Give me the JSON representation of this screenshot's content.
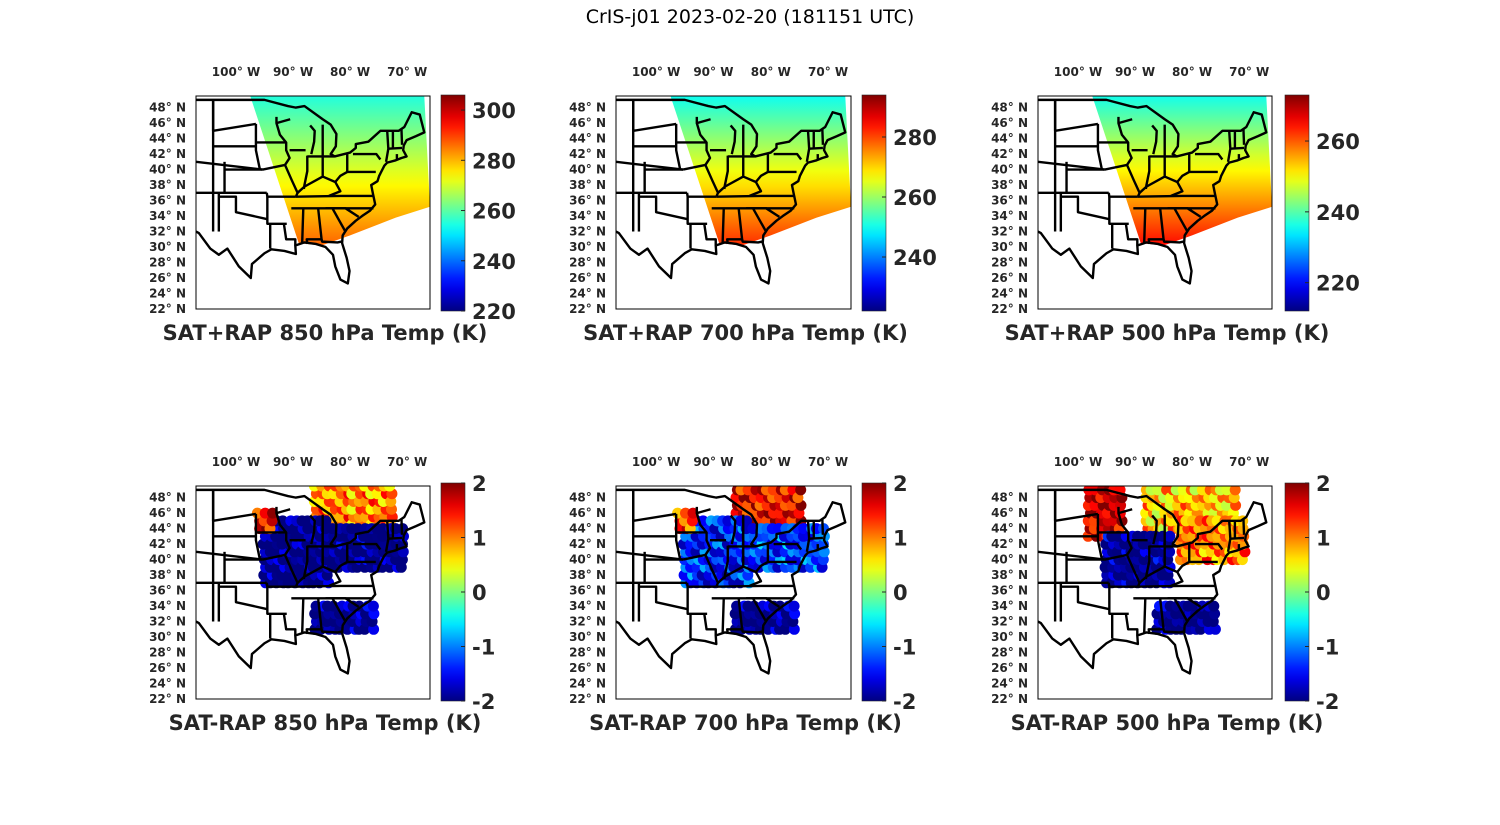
{
  "figure": {
    "suptitle": "CrIS-j01 2023-02-20 (181151 UTC)"
  },
  "chart_data": [
    {
      "type": "heatmap",
      "panel": "top-left",
      "title": "SAT+RAP 850 hPa Temp (K)",
      "variable": "temperature",
      "units": "K",
      "xlabel": "",
      "ylabel": "",
      "xlim": [
        -107,
        -66
      ],
      "ylim": [
        22,
        49.5
      ],
      "x_ticks": [
        "100° W",
        "90° W",
        "80° W",
        "70° W"
      ],
      "x_tick_values": [
        -100,
        -90,
        -80,
        -70
      ],
      "y_ticks": [
        "48° N",
        "46° N",
        "44° N",
        "42° N",
        "40° N",
        "38° N",
        "36° N",
        "34° N",
        "32° N",
        "30° N",
        "28° N",
        "26° N",
        "24° N",
        "22° N"
      ],
      "y_tick_values": [
        48,
        46,
        44,
        42,
        40,
        38,
        36,
        34,
        32,
        30,
        28,
        26,
        24,
        22
      ],
      "colorbar": {
        "colormap": "jet",
        "range": [
          220,
          306
        ],
        "ticks": [
          220,
          240,
          260,
          280,
          300
        ],
        "tick_labels": [
          "220",
          "240",
          "260",
          "280",
          "300"
        ]
      },
      "field": {
        "north_value": 255,
        "south_value": 287,
        "lat_top": 49.5,
        "lat_bottom": 30.5
      },
      "swath": "satellite",
      "grid": false
    },
    {
      "type": "heatmap",
      "panel": "top-middle",
      "title": "SAT+RAP 700 hPa Temp (K)",
      "variable": "temperature",
      "units": "K",
      "xlim": [
        -107,
        -66
      ],
      "ylim": [
        22,
        49.5
      ],
      "x_ticks": [
        "100° W",
        "90° W",
        "80° W",
        "70° W"
      ],
      "x_tick_values": [
        -100,
        -90,
        -80,
        -70
      ],
      "y_ticks": [
        "48° N",
        "46° N",
        "44° N",
        "42° N",
        "40° N",
        "38° N",
        "36° N",
        "34° N",
        "32° N",
        "30° N",
        "28° N",
        "26° N",
        "24° N",
        "22° N"
      ],
      "y_tick_values": [
        48,
        46,
        44,
        42,
        40,
        38,
        36,
        34,
        32,
        30,
        28,
        26,
        24,
        22
      ],
      "colorbar": {
        "colormap": "jet",
        "range": [
          222,
          294
        ],
        "ticks": [
          240,
          260,
          280
        ],
        "tick_labels": [
          "240",
          "260",
          "280"
        ]
      },
      "field": {
        "north_value": 250,
        "south_value": 282,
        "lat_top": 49.5,
        "lat_bottom": 30.5
      },
      "grid": false
    },
    {
      "type": "heatmap",
      "panel": "top-right",
      "title": "SAT+RAP 500 hPa Temp (K)",
      "variable": "temperature",
      "units": "K",
      "xlim": [
        -107,
        -66
      ],
      "ylim": [
        22,
        49.5
      ],
      "x_ticks": [
        "100° W",
        "90° W",
        "80° W",
        "70° W"
      ],
      "x_tick_values": [
        -100,
        -90,
        -80,
        -70
      ],
      "y_ticks": [
        "48° N",
        "46° N",
        "44° N",
        "42° N",
        "40° N",
        "38° N",
        "36° N",
        "34° N",
        "32° N",
        "30° N",
        "28° N",
        "26° N",
        "24° N",
        "22° N"
      ],
      "y_tick_values": [
        48,
        46,
        44,
        42,
        40,
        38,
        36,
        34,
        32,
        30,
        28,
        26,
        24,
        22
      ],
      "colorbar": {
        "colormap": "jet",
        "range": [
          212,
          273
        ],
        "ticks": [
          220,
          240,
          260
        ],
        "tick_labels": [
          "220",
          "240",
          "260"
        ]
      },
      "field": {
        "north_value": 236,
        "south_value": 265,
        "lat_top": 49.5,
        "lat_bottom": 30.5
      },
      "grid": false
    },
    {
      "type": "scatter",
      "panel": "bottom-left",
      "title": "SAT-RAP 850 hPa Temp (K)",
      "variable": "temperature difference",
      "units": "K",
      "xlim": [
        -107,
        -66
      ],
      "ylim": [
        22,
        49.5
      ],
      "x_ticks": [
        "100° W",
        "90° W",
        "80° W",
        "70° W"
      ],
      "x_tick_values": [
        -100,
        -90,
        -80,
        -70
      ],
      "y_ticks": [
        "48° N",
        "46° N",
        "44° N",
        "42° N",
        "40° N",
        "38° N",
        "36° N",
        "34° N",
        "32° N",
        "30° N",
        "28° N",
        "26° N",
        "24° N",
        "22° N"
      ],
      "y_tick_values": [
        48,
        46,
        44,
        42,
        40,
        38,
        36,
        34,
        32,
        30,
        28,
        26,
        24,
        22
      ],
      "colorbar": {
        "colormap": "jet",
        "range": [
          -2,
          2
        ],
        "ticks": [
          -2,
          -1,
          0,
          1,
          2
        ],
        "tick_labels": [
          "-2",
          "-1",
          "0",
          "1",
          "2"
        ]
      },
      "regions": [
        {
          "lon": [
            -86,
            -72
          ],
          "lat": [
            44.5,
            49.5
          ],
          "value": 1.0
        },
        {
          "lon": [
            -95,
            -84
          ],
          "lat": [
            37,
            45
          ],
          "value": -2
        },
        {
          "lon": [
            -84,
            -70
          ],
          "lat": [
            39,
            44
          ],
          "value": -2
        },
        {
          "lon": [
            -86,
            -76
          ],
          "lat": [
            31,
            34
          ],
          "value": -2
        },
        {
          "lon": [
            -96,
            -93
          ],
          "lat": [
            44,
            46
          ],
          "value": 1.5
        }
      ],
      "grid": false
    },
    {
      "type": "scatter",
      "panel": "bottom-middle",
      "title": "SAT-RAP 700 hPa Temp (K)",
      "variable": "temperature difference",
      "units": "K",
      "xlim": [
        -107,
        -66
      ],
      "ylim": [
        22,
        49.5
      ],
      "x_ticks": [
        "100° W",
        "90° W",
        "80° W",
        "70° W"
      ],
      "x_tick_values": [
        -100,
        -90,
        -80,
        -70
      ],
      "y_ticks": [
        "48° N",
        "46° N",
        "44° N",
        "42° N",
        "40° N",
        "38° N",
        "36° N",
        "34° N",
        "32° N",
        "30° N",
        "28° N",
        "26° N",
        "24° N",
        "22° N"
      ],
      "y_tick_values": [
        48,
        46,
        44,
        42,
        40,
        38,
        36,
        34,
        32,
        30,
        28,
        26,
        24,
        22
      ],
      "colorbar": {
        "colormap": "jet",
        "range": [
          -2,
          2
        ],
        "ticks": [
          -2,
          -1,
          0,
          1,
          2
        ],
        "tick_labels": [
          "-2",
          "-1",
          "0",
          "1",
          "2"
        ]
      },
      "regions": [
        {
          "lon": [
            -86,
            -74
          ],
          "lat": [
            44,
            49.5
          ],
          "value": 1.6
        },
        {
          "lon": [
            -95,
            -84
          ],
          "lat": [
            37,
            45
          ],
          "value": -1.3
        },
        {
          "lon": [
            -84,
            -70
          ],
          "lat": [
            39,
            44
          ],
          "value": -1.2
        },
        {
          "lon": [
            -86,
            -76
          ],
          "lat": [
            31,
            34
          ],
          "value": -2
        },
        {
          "lon": [
            -96,
            -93
          ],
          "lat": [
            44,
            46
          ],
          "value": 1.2
        }
      ],
      "grid": false
    },
    {
      "type": "scatter",
      "panel": "bottom-right",
      "title": "SAT-RAP 500 hPa Temp (K)",
      "variable": "temperature difference",
      "units": "K",
      "xlim": [
        -107,
        -66
      ],
      "ylim": [
        22,
        49.5
      ],
      "x_ticks": [
        "100° W",
        "90° W",
        "80° W",
        "70° W"
      ],
      "x_tick_values": [
        -100,
        -90,
        -80,
        -70
      ],
      "y_ticks": [
        "48° N",
        "46° N",
        "44° N",
        "42° N",
        "40° N",
        "38° N",
        "36° N",
        "34° N",
        "32° N",
        "30° N",
        "28° N",
        "26° N",
        "24° N",
        "22° N"
      ],
      "y_tick_values": [
        48,
        46,
        44,
        42,
        40,
        38,
        36,
        34,
        32,
        30,
        28,
        26,
        24,
        22
      ],
      "colorbar": {
        "colormap": "jet",
        "range": [
          -2,
          2
        ],
        "ticks": [
          -2,
          -1,
          0,
          1,
          2
        ],
        "tick_labels": [
          "-2",
          "-1",
          "0",
          "1",
          "2"
        ]
      },
      "regions": [
        {
          "lon": [
            -98,
            -92
          ],
          "lat": [
            43,
            49.5
          ],
          "value": 1.7
        },
        {
          "lon": [
            -88,
            -72
          ],
          "lat": [
            44,
            49.5
          ],
          "value": 0.8
        },
        {
          "lon": [
            -95,
            -84
          ],
          "lat": [
            37,
            43
          ],
          "value": -1.9
        },
        {
          "lon": [
            -82,
            -70
          ],
          "lat": [
            40,
            45
          ],
          "value": 1.0
        },
        {
          "lon": [
            -86,
            -76
          ],
          "lat": [
            31,
            34
          ],
          "value": -2
        }
      ],
      "grid": false
    }
  ]
}
